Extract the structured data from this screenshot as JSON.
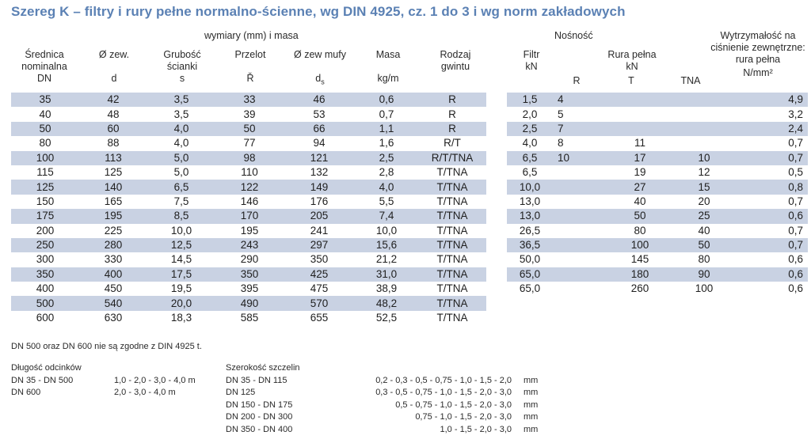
{
  "title": "Szereg K – filtry i rury pełne normalno-ścienne, wg DIN 4925, cz. 1 do 3 i wg norm zakładowych",
  "left_table": {
    "group_header": "wymiary (mm) i masa",
    "headers": [
      {
        "top": "Średnica",
        "mid": "nominalna",
        "unit": "DN"
      },
      {
        "top": "Ø zew.",
        "mid": "",
        "unit": "d"
      },
      {
        "top": "Grubość",
        "mid": "ścianki",
        "unit": "s"
      },
      {
        "top": "Przelot",
        "mid": "",
        "unit": "Ř"
      },
      {
        "top": "Ø zew mufy",
        "mid": "",
        "unit": "ds"
      },
      {
        "top": "Masa",
        "mid": "",
        "unit": "kg/m"
      },
      {
        "top": "Rodzaj",
        "mid": "gwintu",
        "unit": ""
      }
    ],
    "rows": [
      [
        "35",
        "42",
        "3,5",
        "33",
        "46",
        "0,6",
        "R"
      ],
      [
        "40",
        "48",
        "3,5",
        "39",
        "53",
        "0,7",
        "R"
      ],
      [
        "50",
        "60",
        "4,0",
        "50",
        "66",
        "1,1",
        "R"
      ],
      [
        "80",
        "88",
        "4,0",
        "77",
        "94",
        "1,6",
        "R/T"
      ],
      [
        "100",
        "113",
        "5,0",
        "98",
        "121",
        "2,5",
        "R/T/TNA"
      ],
      [
        "115",
        "125",
        "5,0",
        "110",
        "132",
        "2,8",
        "T/TNA"
      ],
      [
        "125",
        "140",
        "6,5",
        "122",
        "149",
        "4,0",
        "T/TNA"
      ],
      [
        "150",
        "165",
        "7,5",
        "146",
        "176",
        "5,5",
        "T/TNA"
      ],
      [
        "175",
        "195",
        "8,5",
        "170",
        "205",
        "7,4",
        "T/TNA"
      ],
      [
        "200",
        "225",
        "10,0",
        "195",
        "241",
        "10,0",
        "T/TNA"
      ],
      [
        "250",
        "280",
        "12,5",
        "243",
        "297",
        "15,6",
        "T/TNA"
      ],
      [
        "300",
        "330",
        "14,5",
        "290",
        "350",
        "21,2",
        "T/TNA"
      ],
      [
        "350",
        "400",
        "17,5",
        "350",
        "425",
        "31,0",
        "T/TNA"
      ],
      [
        "400",
        "450",
        "19,5",
        "395",
        "475",
        "38,9",
        "T/TNA"
      ],
      [
        "500",
        "540",
        "20,0",
        "490",
        "570",
        "48,2",
        "T/TNA"
      ],
      [
        "600",
        "630",
        "18,3",
        "585",
        "655",
        "52,5",
        "T/TNA"
      ]
    ]
  },
  "right_table": {
    "group_header": "Nośność",
    "filter_header": {
      "top": "Filtr",
      "unit": "kN"
    },
    "pipe_header": {
      "top": "Rura pełna",
      "unit": "kN"
    },
    "sub_headers": [
      "R",
      "T",
      "TNA"
    ],
    "strength_header": {
      "line1": "Wytrzymałość na",
      "line2": "ciśnienie zewnętrzne:",
      "line3": "rura pełna",
      "unit": "N/mm²"
    },
    "rows": [
      [
        "1,5",
        "4",
        "",
        "",
        "4,9"
      ],
      [
        "2,0",
        "5",
        "",
        "",
        "3,2"
      ],
      [
        "2,5",
        "7",
        "",
        "",
        "2,4"
      ],
      [
        "4,0",
        "8",
        "11",
        "",
        "0,7"
      ],
      [
        "6,5",
        "10",
        "17",
        "10",
        "0,7"
      ],
      [
        "6,5",
        "",
        "19",
        "12",
        "0,5"
      ],
      [
        "10,0",
        "",
        "27",
        "15",
        "0,8"
      ],
      [
        "13,0",
        "",
        "40",
        "20",
        "0,7"
      ],
      [
        "13,0",
        "",
        "50",
        "25",
        "0,6"
      ],
      [
        "26,5",
        "",
        "80",
        "40",
        "0,7"
      ],
      [
        "36,5",
        "",
        "100",
        "50",
        "0,7"
      ],
      [
        "50,0",
        "",
        "145",
        "80",
        "0,6"
      ],
      [
        "65,0",
        "",
        "180",
        "90",
        "0,6"
      ],
      [
        "65,0",
        "",
        "260",
        "100",
        "0,6"
      ]
    ]
  },
  "note": "DN 500 oraz DN 600 nie są zgodne z DIN 4925 t.",
  "lengths": {
    "title": "Długość odcinków",
    "rows": [
      {
        "dn": "DN 35 - DN 500",
        "value": "1,0 - 2,0 - 3,0 - 4,0 m"
      },
      {
        "dn": "DN 600",
        "value": "2,0 - 3,0 - 4,0 m"
      }
    ]
  },
  "slots": {
    "title": "Szerokość  szczelin",
    "unit": "mm",
    "rows": [
      {
        "dn": "DN 35 - DN 115",
        "value": "0,2 - 0,3 - 0,5 - 0,75 - 1,0 - 1,5 - 2,0"
      },
      {
        "dn": "DN 125",
        "value": "0,3 - 0,5 - 0,75 - 1,0 - 1,5 - 2,0 - 3,0"
      },
      {
        "dn": "DN 150 - DN 175",
        "value": "0,5 - 0,75 - 1,0 - 1,5 - 2,0 - 3,0"
      },
      {
        "dn": "DN 200 - DN 300",
        "value": "0,75 - 1,0 - 1,5 - 2,0 - 3,0"
      },
      {
        "dn": "DN 350 - DN 400",
        "value": "1,0 - 1,5 - 2,0 - 3,0"
      }
    ]
  }
}
